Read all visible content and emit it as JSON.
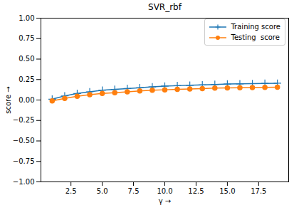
{
  "chart_data": {
    "type": "line",
    "title": "SVR_rbf",
    "x_label": "γ",
    "y_label": "score",
    "x": [
      1,
      2,
      3,
      4,
      5,
      6,
      7,
      8,
      9,
      10,
      11,
      12,
      13,
      14,
      15,
      16,
      17,
      18,
      19
    ],
    "series": [
      {
        "name": "Training score",
        "color": "#1f77b4",
        "marker": "plus",
        "values": [
          0.01,
          0.05,
          0.08,
          0.1,
          0.12,
          0.13,
          0.14,
          0.15,
          0.16,
          0.17,
          0.175,
          0.18,
          0.185,
          0.19,
          0.195,
          0.197,
          0.2,
          0.203,
          0.205
        ]
      },
      {
        "name": "Testing  score",
        "color": "#ff7f0e",
        "marker": "circle",
        "values": [
          -0.01,
          0.02,
          0.045,
          0.065,
          0.08,
          0.09,
          0.1,
          0.11,
          0.12,
          0.125,
          0.13,
          0.135,
          0.14,
          0.145,
          0.148,
          0.15,
          0.153,
          0.155,
          0.157
        ]
      }
    ],
    "xlim": [
      0.1,
      19.9
    ],
    "xticks": [
      2.5,
      {
        "value": 5,
        "label": "5.0"
      },
      7.5,
      {
        "value": 10,
        "label": "10.0"
      },
      12.5,
      {
        "value": 15,
        "label": "15.0"
      },
      17.5
    ],
    "ylim": [
      -1,
      1
    ],
    "yticks": [
      {
        "value": -1,
        "label": "−1.00"
      },
      {
        "value": -0.75,
        "label": "−0.75"
      },
      {
        "value": -0.5,
        "label": "−0.50"
      },
      {
        "value": -0.25,
        "label": "−0.25"
      },
      {
        "value": 0,
        "label": "0.00"
      },
      {
        "value": 0.25,
        "label": "0.25"
      },
      {
        "value": 0.5,
        "label": "0.50"
      },
      {
        "value": 0.75,
        "label": "0.75"
      },
      {
        "value": 1,
        "label": "1.00"
      }
    ],
    "grid": false,
    "legend": "upper right"
  }
}
